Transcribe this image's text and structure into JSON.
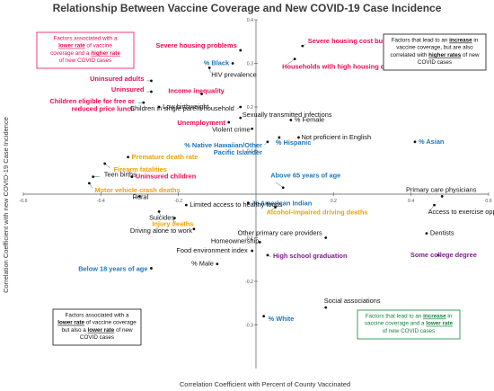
{
  "chart_data": {
    "type": "scatter",
    "title": "Relationship Between Vaccine Coverage and New COVID-19 Case Incidence",
    "xlabel": "Correlation Coefficient with Percent of County Vaccinated",
    "ylabel": "Correlation Coefficient with new COVID-19 Case Incidence",
    "xlim": [
      -0.6,
      0.6
    ],
    "ylim": [
      -0.4,
      0.4
    ],
    "x_ticks": [
      "-0.6",
      "-0.4",
      "-0.2",
      "0.2",
      "0.4",
      "0.6"
    ],
    "y_ticks": [
      "0.4",
      "0.3",
      "0.2",
      "0.1",
      "-0.1",
      "-0.2",
      "-0.3"
    ],
    "colors": {
      "red": "#ef0a54",
      "orange": "#f2a100",
      "blue": "#1c78bd",
      "purple": "#7e1d8c",
      "green": "#11833a",
      "black": "#111111"
    },
    "points": [
      {
        "label": "Severe housing problems",
        "x": -0.04,
        "y": 0.33,
        "color": "red"
      },
      {
        "label": "Severe housing cost burden",
        "x": 0.12,
        "y": 0.34,
        "color": "red"
      },
      {
        "label": "Households with high housing costs",
        "x": 0.1,
        "y": 0.31,
        "color": "red"
      },
      {
        "label": "% Black",
        "x": -0.06,
        "y": 0.3,
        "color": "blue"
      },
      {
        "label": "HIV prevalence",
        "x": -0.12,
        "y": 0.29,
        "color": "black"
      },
      {
        "label": "Income inequality",
        "x": -0.14,
        "y": 0.23,
        "color": "red"
      },
      {
        "label": "Uninsured adults",
        "x": -0.27,
        "y": 0.26,
        "color": "red"
      },
      {
        "label": "Uninsured",
        "x": -0.27,
        "y": 0.235,
        "color": "red"
      },
      {
        "label": "Children eligible for free or reduced price lunch",
        "x": -0.29,
        "y": 0.21,
        "color": "red"
      },
      {
        "label": "Low birthweight",
        "x": -0.25,
        "y": 0.2,
        "color": "black"
      },
      {
        "label": "Children in single parent household",
        "x": -0.04,
        "y": 0.2,
        "color": "black"
      },
      {
        "label": "Unemployment",
        "x": -0.07,
        "y": 0.165,
        "color": "red"
      },
      {
        "label": "Sexually transmitted infections",
        "x": -0.04,
        "y": 0.175,
        "color": "black"
      },
      {
        "label": "% Female",
        "x": 0.09,
        "y": 0.17,
        "color": "black"
      },
      {
        "label": "Violent crime",
        "x": -0.01,
        "y": 0.15,
        "color": "black"
      },
      {
        "label": "Not proficient in English",
        "x": 0.11,
        "y": 0.13,
        "color": "black"
      },
      {
        "label": "% Asian",
        "x": 0.41,
        "y": 0.12,
        "color": "blue"
      },
      {
        "label": "% Native Hawaiian/Other Pacific Islander",
        "x": 0.03,
        "y": 0.12,
        "color": "blue"
      },
      {
        "label": "% Hispanic",
        "x": 0.06,
        "y": 0.13,
        "color": "blue"
      },
      {
        "label": "Premature death rate",
        "x": -0.33,
        "y": 0.085,
        "color": "orange"
      },
      {
        "label": "Firearm fatalities",
        "x": -0.39,
        "y": 0.07,
        "color": "orange"
      },
      {
        "label": "Uninsured children",
        "x": -0.32,
        "y": 0.04,
        "color": "red"
      },
      {
        "label": "Teen births",
        "x": -0.42,
        "y": 0.04,
        "color": "black"
      },
      {
        "label": "Motor vehicle crash deaths",
        "x": -0.43,
        "y": 0.025,
        "color": "orange"
      },
      {
        "label": "Rural",
        "x": -0.3,
        "y": -0.005,
        "color": "black"
      },
      {
        "label": "Above 65 years of age",
        "x": 0.07,
        "y": 0.015,
        "color": "blue"
      },
      {
        "label": "% American Indian",
        "x": -0.02,
        "y": -0.02,
        "color": "blue"
      },
      {
        "label": "Alcohol-impaired driving deaths",
        "x": 0.05,
        "y": -0.03,
        "color": "orange"
      },
      {
        "label": "Primary care physicians",
        "x": 0.48,
        "y": -0.005,
        "color": "black"
      },
      {
        "label": "Access to exercise opportunities",
        "x": 0.46,
        "y": -0.025,
        "color": "black"
      },
      {
        "label": "Suicides",
        "x": -0.25,
        "y": -0.04,
        "color": "black"
      },
      {
        "label": "Injury deaths",
        "x": -0.21,
        "y": -0.055,
        "color": "orange"
      },
      {
        "label": "Limited access to healthy foods",
        "x": -0.18,
        "y": -0.025,
        "color": "black"
      },
      {
        "label": "Driving alone to work",
        "x": -0.16,
        "y": -0.08,
        "color": "black"
      },
      {
        "label": "Other primary care providers",
        "x": 0.18,
        "y": -0.1,
        "color": "black"
      },
      {
        "label": "Homeownership",
        "x": 0.01,
        "y": -0.11,
        "color": "black"
      },
      {
        "label": "Dentists",
        "x": 0.44,
        "y": -0.09,
        "color": "black"
      },
      {
        "label": "Food environment index",
        "x": -0.01,
        "y": -0.13,
        "color": "black"
      },
      {
        "label": "High school graduation",
        "x": 0.03,
        "y": -0.14,
        "color": "purple"
      },
      {
        "label": "Some college degree",
        "x": 0.47,
        "y": -0.14,
        "color": "purple"
      },
      {
        "label": "% Male",
        "x": -0.1,
        "y": -0.16,
        "color": "black"
      },
      {
        "label": "Below 18 years of age",
        "x": -0.27,
        "y": -0.17,
        "color": "blue"
      },
      {
        "label": "Social associations",
        "x": 0.18,
        "y": -0.26,
        "color": "black"
      },
      {
        "label": "% White",
        "x": 0.02,
        "y": -0.28,
        "color": "blue"
      }
    ],
    "quadrant_boxes": [
      {
        "text": "Factors associated with a lower rate of vaccine coverage and a higher rate of new COVID cases",
        "color": "red"
      },
      {
        "text": "Factors that lead to an increase in vaccine coverage, but are also correlated with higher rates of new COVID cases",
        "color": "black"
      },
      {
        "text": "Factors associated with a lower rate of vaccine coverage but also a lower rate of new COVID cases",
        "color": "black"
      },
      {
        "text": "Factors that lead to an increase in vaccine coverage and a lower rate of new COVID cases",
        "color": "green"
      }
    ]
  }
}
